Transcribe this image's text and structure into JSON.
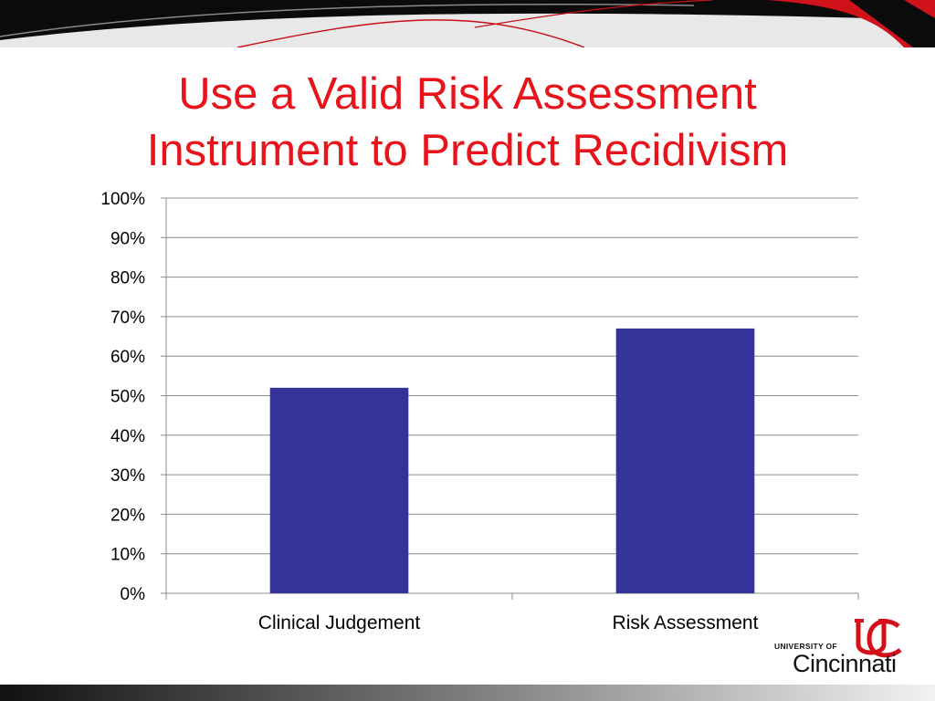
{
  "slide": {
    "title_line1": "Use a Valid Risk Assessment",
    "title_line2": "Instrument to Predict Recidivism",
    "title_color": "#e8141b"
  },
  "logo": {
    "university_of": "UNIVERSITY OF",
    "name": "Cincinnati",
    "mark_icon": "uc-monogram-icon",
    "color": "#d4111a"
  },
  "chart_data": {
    "type": "bar",
    "categories": [
      "Clinical Judgement",
      "Risk Assessment"
    ],
    "values": [
      52,
      67
    ],
    "ylim": [
      0,
      100
    ],
    "yticks": [
      0,
      10,
      20,
      30,
      40,
      50,
      60,
      70,
      80,
      90,
      100
    ],
    "ytick_labels": [
      "0%",
      "10%",
      "20%",
      "30%",
      "40%",
      "50%",
      "60%",
      "70%",
      "80%",
      "90%",
      "100%"
    ],
    "bar_color": "#333399",
    "grid": true,
    "legend": "none",
    "title": "",
    "xlabel": "",
    "ylabel": ""
  }
}
